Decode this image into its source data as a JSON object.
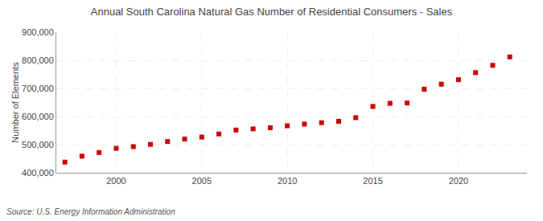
{
  "chart_data": {
    "type": "scatter",
    "title": "Annual South Carolina Natural Gas Number of Residential Consumers - Sales",
    "ylabel": "Number of Elements",
    "annotation": "Source: U.S. Energy Information Administration",
    "x": [
      1997,
      1998,
      1999,
      2000,
      2001,
      2002,
      2003,
      2004,
      2005,
      2006,
      2007,
      2008,
      2009,
      2010,
      2011,
      2012,
      2013,
      2014,
      2015,
      2016,
      2017,
      2018,
      2019,
      2020,
      2021,
      2022,
      2023
    ],
    "values": [
      438000,
      459000,
      472000,
      487000,
      493000,
      501000,
      511000,
      520000,
      527000,
      538000,
      552000,
      556000,
      560000,
      567000,
      573000,
      578000,
      583000,
      596000,
      636000,
      647000,
      648000,
      697000,
      715000,
      731000,
      756000,
      782000,
      812000
    ],
    "color": "#cc0000",
    "marker": "square",
    "xlim": [
      1996.5,
      2024
    ],
    "xticks": [
      2000,
      2005,
      2010,
      2015,
      2020
    ],
    "ylim": [
      400000,
      900000
    ],
    "yticks": [
      {
        "value": 400000,
        "label": "400,000"
      },
      {
        "value": 500000,
        "label": "500,000"
      },
      {
        "value": 600000,
        "label": "600,000"
      },
      {
        "value": 700000,
        "label": "700,000"
      },
      {
        "value": 800000,
        "label": "800,000"
      },
      {
        "value": 900000,
        "label": "900,000"
      }
    ],
    "grid": true
  }
}
